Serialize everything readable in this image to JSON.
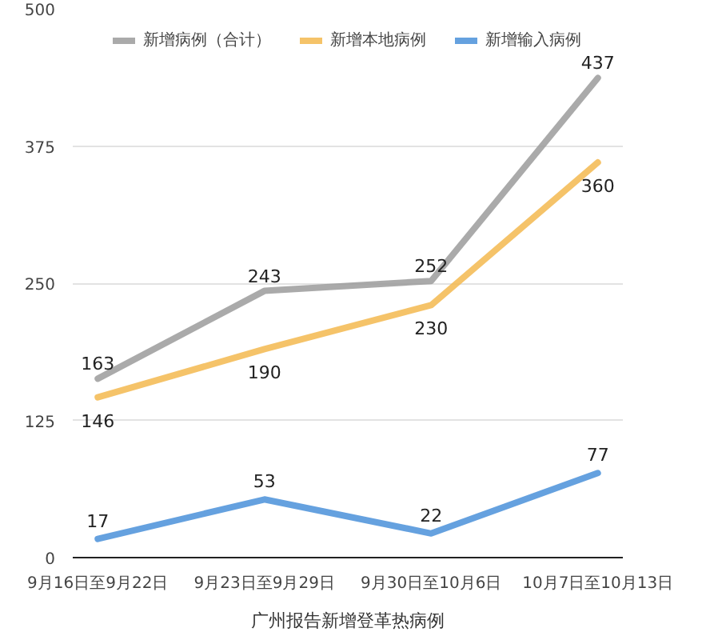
{
  "chart_data": {
    "type": "line",
    "title": "广州报告新增登革热病例",
    "categories": [
      "9月16日至9月22日",
      "9月23日至9月29日",
      "9月30日至10月6日",
      "10月7日至10月13日"
    ],
    "series": [
      {
        "name": "新增病例（合计）",
        "color": "#9b9b9b",
        "values": [
          163,
          243,
          252,
          437
        ]
      },
      {
        "name": "新增本地病例",
        "color": "#f3b84f",
        "values": [
          146,
          190,
          230,
          360
        ]
      },
      {
        "name": "新增输入病例",
        "color": "#4a90d9",
        "values": [
          17,
          53,
          22,
          77
        ]
      }
    ],
    "ylim": [
      0,
      500
    ],
    "yticks": [
      0,
      125,
      250,
      375,
      500
    ],
    "grid": "y",
    "legend": "top",
    "data_labels": true,
    "marker": "none",
    "line_style": "solid"
  }
}
